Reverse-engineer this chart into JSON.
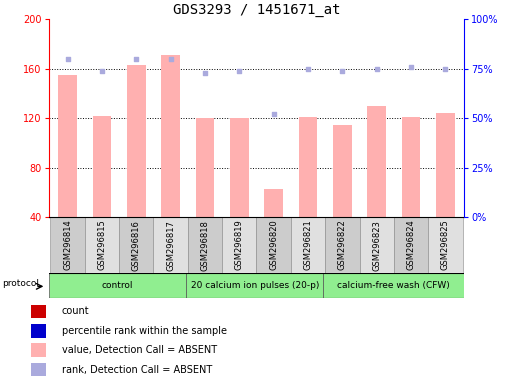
{
  "title": "GDS3293 / 1451671_at",
  "samples": [
    "GSM296814",
    "GSM296815",
    "GSM296816",
    "GSM296817",
    "GSM296818",
    "GSM296819",
    "GSM296820",
    "GSM296821",
    "GSM296822",
    "GSM296823",
    "GSM296824",
    "GSM296825"
  ],
  "bar_values": [
    155,
    122,
    163,
    171,
    120,
    120,
    63,
    121,
    114,
    130,
    121,
    124
  ],
  "percentile_values": [
    80,
    74,
    80,
    80,
    73,
    74,
    52,
    75,
    74,
    75,
    76,
    75
  ],
  "ylim_left": [
    40,
    200
  ],
  "ylim_right": [
    0,
    100
  ],
  "yticks_left": [
    40,
    80,
    120,
    160,
    200
  ],
  "yticks_right": [
    0,
    25,
    50,
    75,
    100
  ],
  "bar_color": "#ffb0b0",
  "dot_color": "#aaaadd",
  "background_color": "#ffffff",
  "title_fontsize": 10,
  "tick_fontsize": 7,
  "legend_fontsize": 7,
  "sample_fontsize": 6,
  "proto_groups": [
    {
      "label": "control",
      "start": 0,
      "end": 3
    },
    {
      "label": "20 calcium ion pulses (20-p)",
      "start": 4,
      "end": 7
    },
    {
      "label": "calcium-free wash (CFW)",
      "start": 8,
      "end": 11
    }
  ],
  "legend_items": [
    {
      "color": "#cc0000",
      "label": "count"
    },
    {
      "color": "#0000cc",
      "label": "percentile rank within the sample"
    },
    {
      "color": "#ffb0b0",
      "label": "value, Detection Call = ABSENT"
    },
    {
      "color": "#aaaadd",
      "label": "rank, Detection Call = ABSENT"
    }
  ],
  "proto_green": "#90ee90",
  "sample_box_colors": [
    "#cccccc",
    "#e0e0e0"
  ]
}
